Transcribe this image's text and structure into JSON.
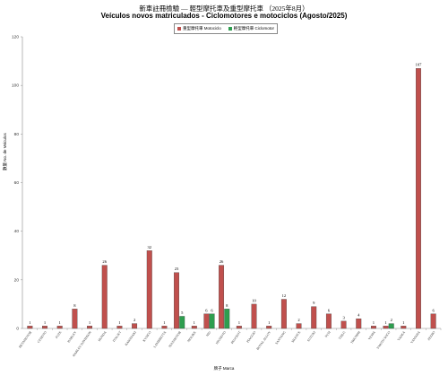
{
  "chart_data": {
    "type": "bar",
    "title": "新車註冊檢驗 — 輕型摩托車及重型摩托車 （2025年8月）",
    "subtitle": "Veículos novos matriculados  - Ciclomotores e motociclos (Agosto/2025)",
    "xlabel": "牌子 Marca",
    "ylabel": "數量 No. de Veículos",
    "ylim": [
      0,
      120
    ],
    "yticks": [
      0,
      20,
      40,
      60,
      80,
      100,
      120
    ],
    "grid": false,
    "legend_position": "top-center",
    "categories": [
      "BETAMOTOR",
      "CFMOTO",
      "FUZE",
      "HARLEY",
      "HARLEY DAVIDSON",
      "HONDA",
      "ITALJET",
      "KAWASAKI",
      "KYMCO",
      "LAMBRETTA",
      "MAXMOTOR",
      "MOLIKE",
      "NIU",
      "NIUMOTO",
      "PEUGEOT",
      "PIAGGIO",
      "ROYAL ALLOY",
      "SANYANG",
      "SILENCE",
      "SUZUKI",
      "SYM",
      "TAILG",
      "TRIUMPH",
      "VESPA",
      "VMOTO SOCO",
      "YADEA",
      "YAMAHA",
      "ZEEHO"
    ],
    "series": [
      {
        "name": "重型摩托車 Motociclo",
        "color": "#c0504d",
        "values": [
          1,
          1,
          1,
          8,
          1,
          26,
          1,
          2,
          32,
          1,
          23,
          1,
          6,
          26,
          1,
          10,
          1,
          12,
          2,
          9,
          6,
          3,
          4,
          1,
          1,
          1,
          107,
          6
        ]
      },
      {
        "name": "輕型摩托車 Ciclomotor",
        "color": "#2e9e4f",
        "values": [
          0,
          0,
          0,
          0,
          0,
          0,
          0,
          0,
          0,
          0,
          5,
          0,
          6,
          8,
          0,
          0,
          0,
          0,
          0,
          0,
          0,
          0,
          0,
          0,
          2,
          0,
          0,
          0
        ]
      }
    ]
  }
}
